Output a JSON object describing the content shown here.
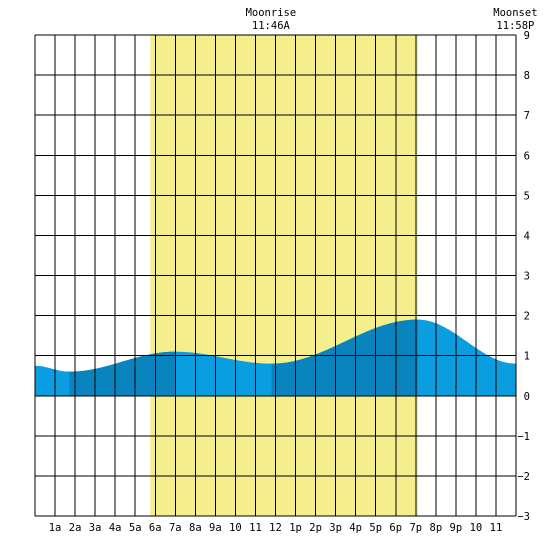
{
  "chart_data": {
    "type": "area",
    "title": "",
    "xlabel": "",
    "ylabel": "",
    "x_tick_labels": [
      "1a",
      "2a",
      "3a",
      "4a",
      "5a",
      "6a",
      "7a",
      "8a",
      "9a",
      "10",
      "11",
      "12",
      "1p",
      "2p",
      "3p",
      "4p",
      "5p",
      "6p",
      "7p",
      "8p",
      "9p",
      "10",
      "11"
    ],
    "y_tick_labels": [
      "9",
      "8",
      "7",
      "6",
      "5",
      "4",
      "3",
      "2",
      "1",
      "0",
      "−1",
      "−2",
      "−3"
    ],
    "xlim_hours": [
      0,
      24
    ],
    "ylim": [
      -3,
      9
    ],
    "daylight_hours": [
      5.75,
      19.1
    ],
    "tide_extrema": [
      {
        "hour": 1.7,
        "height": 0.6
      },
      {
        "hour": 7.0,
        "height": 1.1
      },
      {
        "hour": 11.8,
        "height": 0.8
      },
      {
        "hour": 19.1,
        "height": 1.9
      },
      {
        "hour": 24.0,
        "height": 0.8
      }
    ],
    "tide_start": {
      "hour": 0.0,
      "height": 0.75
    },
    "shade_bands_hours": [
      [
        1.7,
        7.0
      ],
      [
        11.8,
        19.1
      ]
    ],
    "moonrise": {
      "label": "Moonrise",
      "time": "11:46A",
      "hour": 11.77
    },
    "moonset": {
      "label": "Moonset",
      "time": "11:58P",
      "hour": 23.97
    },
    "colors": {
      "background": "#ffffff",
      "daylight": "#f5ee8c",
      "tide_light": "#0a9ddf",
      "tide_dark": "#0a84bf",
      "grid": "#000000"
    }
  }
}
